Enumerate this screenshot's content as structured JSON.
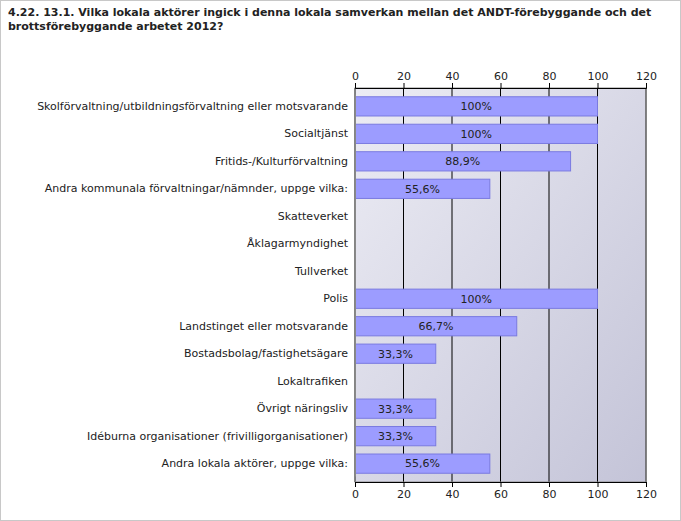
{
  "chart_data": {
    "type": "bar",
    "orientation": "horizontal",
    "title": "4.22. 13.1. Vilka lokala aktörer ingick i denna lokala samverkan mellan det ANDT-förebyggande och det brottsförebyggande arbetet 2012?",
    "categories": [
      "Skolförvaltning/utbildningsförvaltning eller motsvarande",
      "Socialtjänst",
      "Fritids-/Kulturförvaltning",
      "Andra kommunala förvaltningar/nämnder, uppge vilka:",
      "Skatteverket",
      "Åklagarmyndighet",
      "Tullverket",
      "Polis",
      "Landstinget eller motsvarande",
      "Bostadsbolag/fastighetsägare",
      "Lokaltrafiken",
      "Övrigt näringsliv",
      "Idéburna organisationer (frivilligorganisationer)",
      "Andra lokala aktörer, uppge vilka:"
    ],
    "values": [
      100,
      100,
      88.9,
      55.6,
      0,
      0,
      0,
      100,
      66.7,
      33.3,
      0,
      33.3,
      33.3,
      55.6
    ],
    "value_labels": [
      "100%",
      "100%",
      "88,9%",
      "55,6%",
      null,
      null,
      null,
      "100%",
      "66,7%",
      "33,3%",
      null,
      "33,3%",
      "33,3%",
      "55,6%"
    ],
    "color": "#9c9cff",
    "xlim": [
      0,
      120
    ],
    "xticks": [
      0,
      20,
      40,
      60,
      80,
      100,
      120
    ],
    "grid": true,
    "data_labels": true
  }
}
